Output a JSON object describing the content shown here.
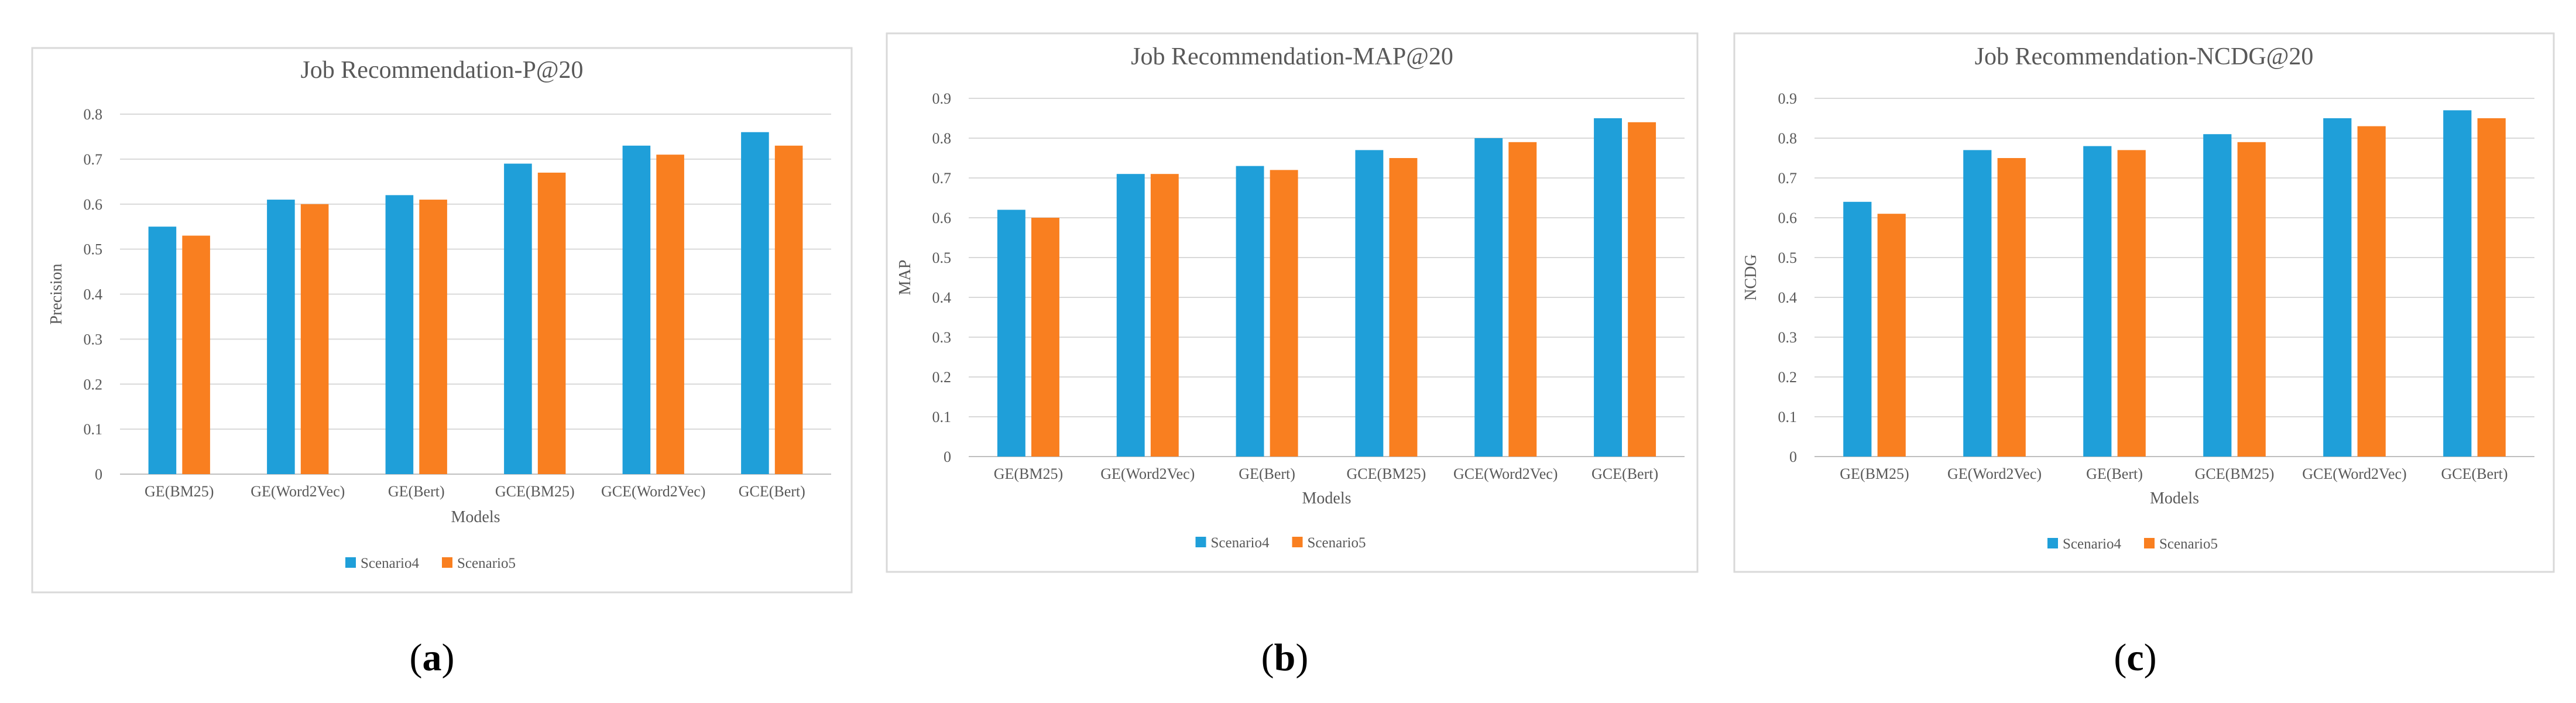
{
  "colors": {
    "Scenario4": "#1f9fd9",
    "Scenario5": "#f97f20"
  },
  "chart_data": [
    {
      "type": "bar",
      "title": "Job Recommendation-P@20",
      "xlabel": "Models",
      "ylabel": "Precision",
      "ylim": [
        0,
        0.8
      ],
      "yticks": [
        "0",
        "0.1",
        "0.2",
        "0.3",
        "0.4",
        "0.5",
        "0.6",
        "0.7",
        "0.8"
      ],
      "grid": true,
      "legend_position": "bottom",
      "categories": [
        "GE(BM25)",
        "GE(Word2Vec)",
        "GE(Bert)",
        "GCE(BM25)",
        "GCE(Word2Vec)",
        "GCE(Bert)"
      ],
      "series": [
        {
          "name": "Scenario4",
          "values": [
            0.55,
            0.61,
            0.62,
            0.69,
            0.73,
            0.76
          ]
        },
        {
          "name": "Scenario5",
          "values": [
            0.53,
            0.6,
            0.61,
            0.67,
            0.71,
            0.73
          ]
        }
      ],
      "panel_label": {
        "open": "(",
        "letter": "a",
        "close": ")"
      }
    },
    {
      "type": "bar",
      "title": "Job Recommendation-MAP@20",
      "xlabel": "Models",
      "ylabel": "MAP",
      "ylim": [
        0,
        0.9
      ],
      "yticks": [
        "0",
        "0.1",
        "0.2",
        "0.3",
        "0.4",
        "0.5",
        "0.6",
        "0.7",
        "0.8",
        "0.9"
      ],
      "grid": true,
      "legend_position": "bottom",
      "categories": [
        "GE(BM25)",
        "GE(Word2Vec)",
        "GE(Bert)",
        "GCE(BM25)",
        "GCE(Word2Vec)",
        "GCE(Bert)"
      ],
      "series": [
        {
          "name": "Scenario4",
          "values": [
            0.62,
            0.71,
            0.73,
            0.77,
            0.8,
            0.85
          ]
        },
        {
          "name": "Scenario5",
          "values": [
            0.6,
            0.71,
            0.72,
            0.75,
            0.79,
            0.84
          ]
        }
      ],
      "panel_label": {
        "open": "(",
        "letter": "b",
        "close": ")"
      }
    },
    {
      "type": "bar",
      "title": "Job Recommendation-NCDG@20",
      "xlabel": "Models",
      "ylabel": "NCDG",
      "ylim": [
        0,
        0.9
      ],
      "yticks": [
        "0",
        "0.1",
        "0.2",
        "0.3",
        "0.4",
        "0.5",
        "0.6",
        "0.7",
        "0.8",
        "0.9"
      ],
      "grid": true,
      "legend_position": "bottom",
      "categories": [
        "GE(BM25)",
        "GE(Word2Vec)",
        "GE(Bert)",
        "GCE(BM25)",
        "GCE(Word2Vec)",
        "GCE(Bert)"
      ],
      "series": [
        {
          "name": "Scenario4",
          "values": [
            0.64,
            0.77,
            0.78,
            0.81,
            0.85,
            0.87
          ]
        },
        {
          "name": "Scenario5",
          "values": [
            0.61,
            0.75,
            0.77,
            0.79,
            0.83,
            0.85
          ]
        }
      ],
      "panel_label": {
        "open": "(",
        "letter": "c",
        "close": ")"
      }
    }
  ]
}
